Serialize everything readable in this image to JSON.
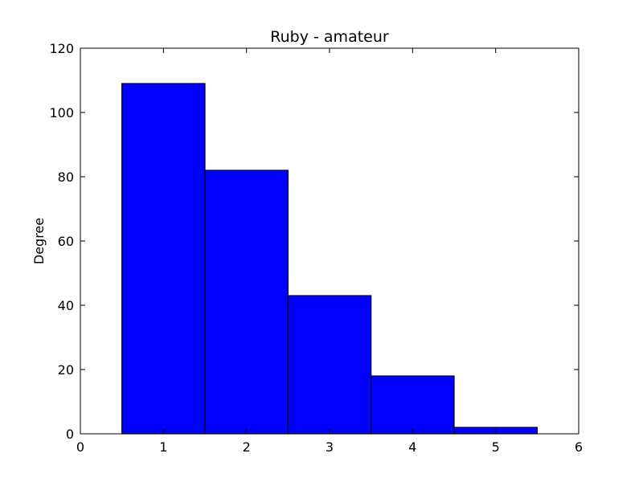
{
  "chart_data": {
    "type": "bar",
    "title": "Ruby - amateur",
    "xlabel": "",
    "ylabel": "Degree",
    "x": [
      1,
      2,
      3,
      4,
      5
    ],
    "values": [
      109,
      82,
      43,
      18,
      2
    ],
    "bar_width": 1,
    "xlim": [
      0,
      6
    ],
    "ylim": [
      0,
      120
    ],
    "xticks": [
      "0",
      "1",
      "2",
      "3",
      "4",
      "5",
      "6"
    ],
    "yticks": [
      "0",
      "20",
      "40",
      "60",
      "80",
      "100",
      "120"
    ],
    "grid": false,
    "bar_color": "#0000ff",
    "edge_color": "#000000"
  }
}
